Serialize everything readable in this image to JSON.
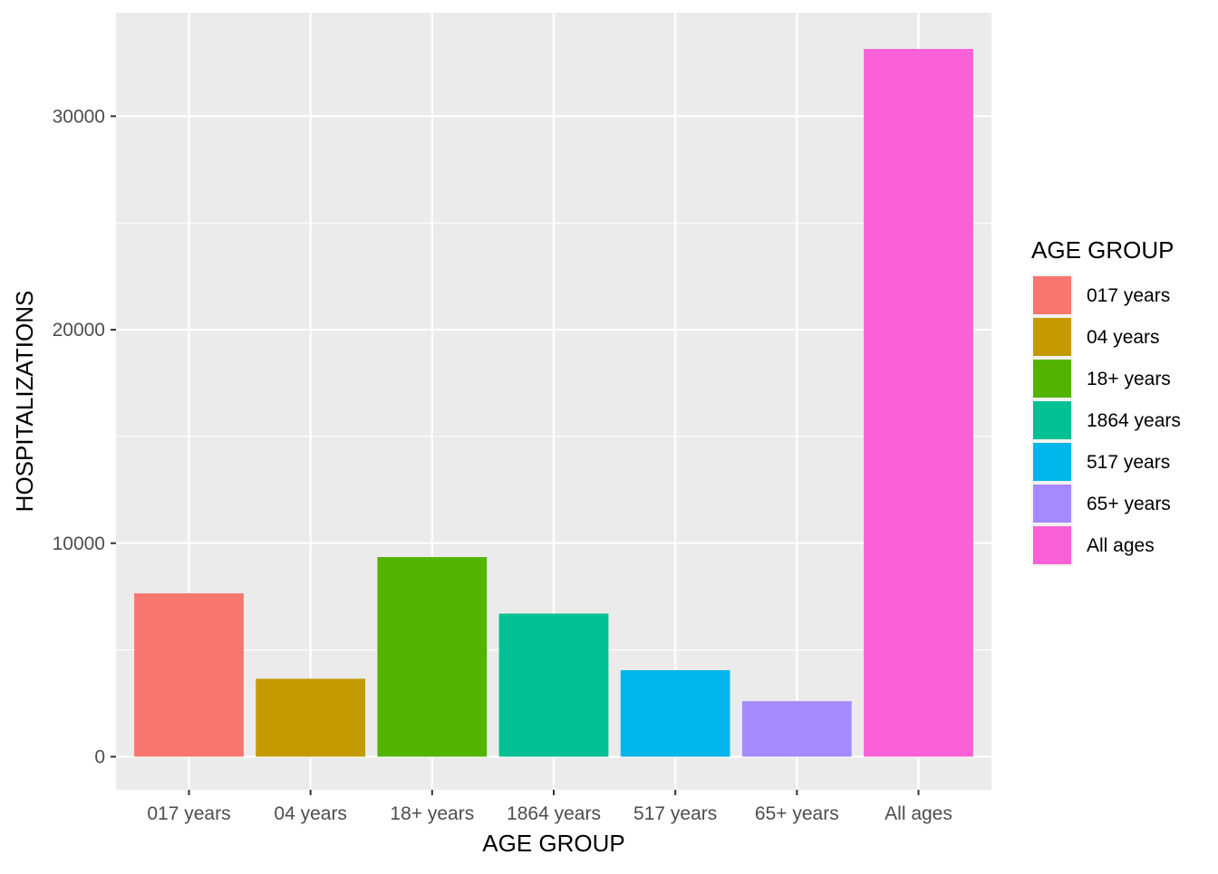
{
  "chart_data": {
    "type": "bar",
    "title": "",
    "xlabel": "AGE GROUP",
    "ylabel": "HOSPITALIZATIONS",
    "categories": [
      "017 years",
      "04 years",
      "18+ years",
      "1864 years",
      "517 years",
      "65+ years",
      "All ages"
    ],
    "values": [
      7650,
      3650,
      9350,
      6700,
      4050,
      2600,
      33150
    ],
    "colors": [
      "#F8766D",
      "#C49A00",
      "#53B400",
      "#00C094",
      "#00B6EB",
      "#A58AFF",
      "#FB61D7"
    ],
    "ylim": [
      -1550,
      34850
    ],
    "yticks": [
      0,
      10000,
      20000,
      30000
    ],
    "ytick_labels": [
      "0",
      "10000",
      "20000",
      "30000"
    ],
    "grid": true,
    "panel_background": "#EBEBEB",
    "grid_color": "#FFFFFF",
    "legend": {
      "title": "AGE GROUP",
      "position": "right",
      "items": [
        "017 years",
        "04 years",
        "18+ years",
        "1864 years",
        "517 years",
        "65+ years",
        "All ages"
      ]
    }
  }
}
